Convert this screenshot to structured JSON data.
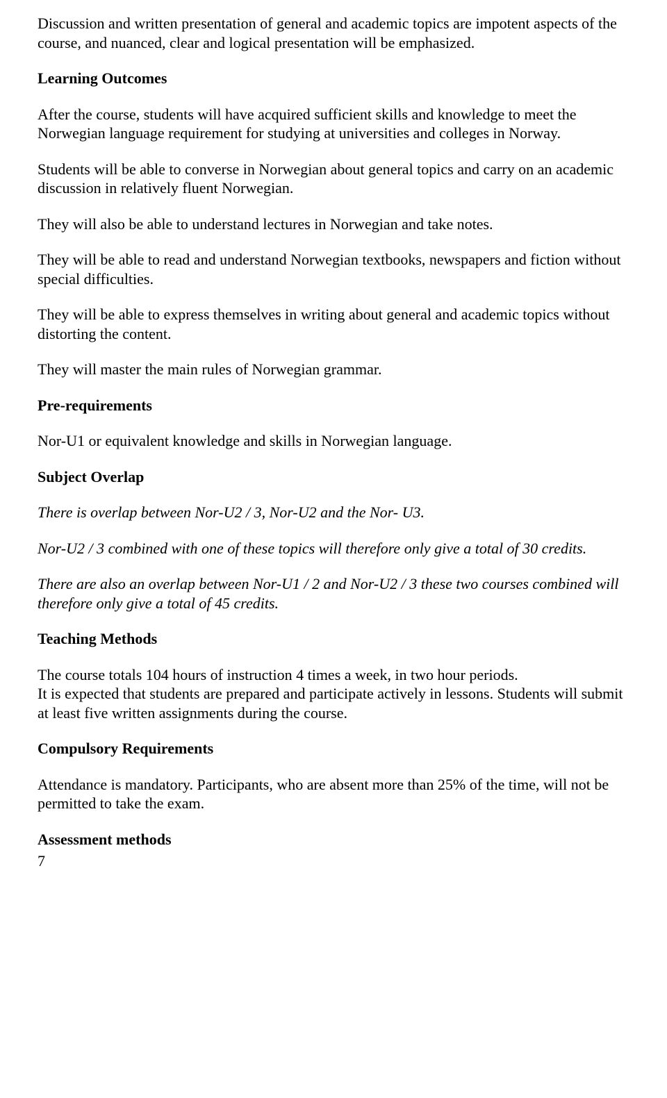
{
  "intro_paragraph": "Discussion and written presentation of general and academic topics are impotent aspects of the course, and nuanced, clear and logical presentation will be emphasized.",
  "learning_outcomes": {
    "heading": "Learning Outcomes",
    "p1": "After the course, students will have acquired sufficient skills and knowledge to meet the Norwegian language requirement for studying at universities and colleges in Norway.",
    "p2": "Students will be able to converse in Norwegian about general topics and carry on an academic discussion in relatively fluent Norwegian.",
    "p3": "They will also be able to understand lectures in Norwegian and take notes.",
    "p4": "They will be able to read and understand Norwegian textbooks, newspapers and fiction without special difficulties.",
    "p5": "They will be able to express themselves in writing about general and academic topics without distorting the content.",
    "p6": "They will master the main rules of Norwegian grammar."
  },
  "prerequirements": {
    "heading": "Pre-requirements",
    "p1": "Nor-U1 or equivalent knowledge and skills in Norwegian language."
  },
  "subject_overlap": {
    "heading": "Subject Overlap",
    "p1": "There is overlap between Nor-U2 / 3, Nor-U2 and the Nor- U3.",
    "p2": "Nor-U2 / 3 combined with one of these topics will therefore only give a total of 30 credits.",
    "p3": "There are also an overlap between Nor-U1 / 2 and Nor-U2 / 3 these two courses combined will therefore only give a total of 45 credits."
  },
  "teaching_methods": {
    "heading": "Teaching Methods",
    "p1": "The course totals 104 hours of instruction 4 times a week, in two hour periods.",
    "p2": "It is expected that students are prepared and participate actively in lessons. Students will submit at least five written assignments during the course."
  },
  "compulsory_requirements": {
    "heading": "Compulsory Requirements",
    "p1": "Attendance is mandatory. Participants, who are absent more than 25% of the time, will not be permitted to take the exam."
  },
  "assessment_methods": {
    "heading": "Assessment methods"
  },
  "page_number": "7"
}
